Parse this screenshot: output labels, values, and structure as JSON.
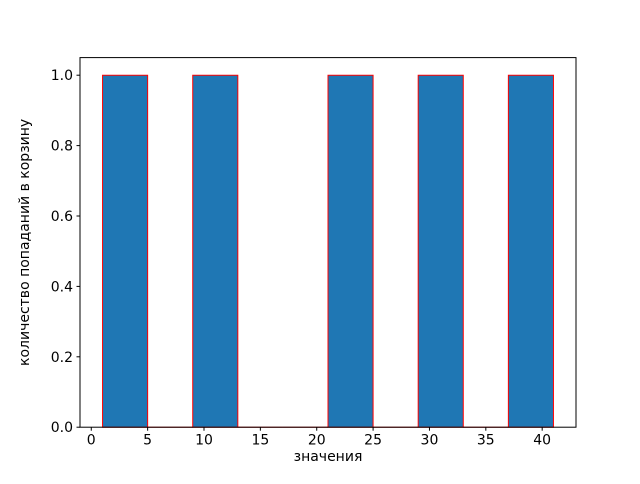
{
  "figure": {
    "background_color": "#ffffff"
  },
  "chart_data": {
    "type": "bar",
    "subtype": "histogram",
    "title": "",
    "xlabel": "значения",
    "ylabel": "количество попаданий в корзину",
    "bin_edges": [
      1,
      5,
      9,
      13,
      17,
      21,
      25,
      29,
      33,
      37,
      41
    ],
    "counts": [
      1,
      0,
      1,
      0,
      0,
      1,
      0,
      1,
      0,
      1
    ],
    "bar_fill_color": "#1f77b4",
    "bar_edge_color": "#ff0000",
    "axis_color": "#000000",
    "xlim": [
      -1,
      43
    ],
    "ylim": [
      0,
      1.05
    ],
    "xticks": [
      0,
      5,
      10,
      15,
      20,
      25,
      30,
      35,
      40
    ],
    "xtick_labels": [
      "0",
      "5",
      "10",
      "15",
      "20",
      "25",
      "30",
      "35",
      "40"
    ],
    "yticks": [
      0,
      0.2,
      0.4,
      0.6,
      0.8,
      1.0
    ],
    "ytick_labels": [
      "0.0",
      "0.2",
      "0.4",
      "0.6",
      "0.8",
      "1.0"
    ],
    "grid": false,
    "legend": null
  }
}
